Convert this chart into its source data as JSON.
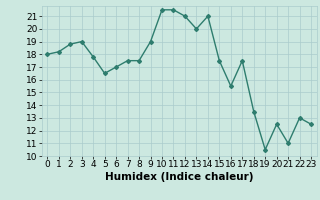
{
  "x": [
    0,
    1,
    2,
    3,
    4,
    5,
    6,
    7,
    8,
    9,
    10,
    11,
    12,
    13,
    14,
    15,
    16,
    17,
    18,
    19,
    20,
    21,
    22,
    23
  ],
  "y": [
    18.0,
    18.2,
    18.8,
    19.0,
    17.8,
    16.5,
    17.0,
    17.5,
    17.5,
    19.0,
    21.5,
    21.5,
    21.0,
    20.0,
    21.0,
    17.5,
    15.5,
    17.5,
    13.5,
    10.5,
    12.5,
    11.0,
    13.0,
    12.5
  ],
  "line_color": "#2e7d6e",
  "marker": "D",
  "marker_size": 2.0,
  "bg_color": "#cce8e0",
  "grid_color": "#aacccc",
  "xlabel": "Humidex (Indice chaleur)",
  "ylim": [
    10,
    21.8
  ],
  "xlim": [
    -0.5,
    23.5
  ],
  "yticks": [
    10,
    11,
    12,
    13,
    14,
    15,
    16,
    17,
    18,
    19,
    20,
    21
  ],
  "xticks": [
    0,
    1,
    2,
    3,
    4,
    5,
    6,
    7,
    8,
    9,
    10,
    11,
    12,
    13,
    14,
    15,
    16,
    17,
    18,
    19,
    20,
    21,
    22,
    23
  ],
  "xlabel_fontsize": 7.5,
  "tick_fontsize": 6.5
}
